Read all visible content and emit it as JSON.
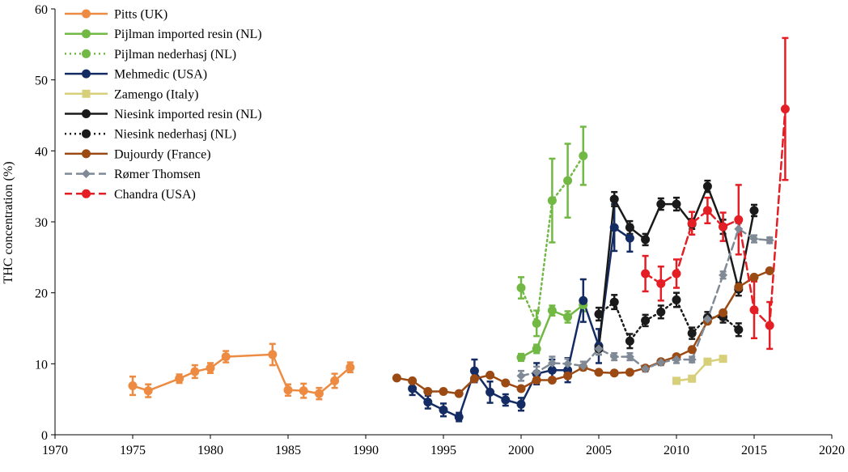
{
  "chart_data": {
    "type": "line",
    "xlabel": "",
    "ylabel": "THC concentration (%)",
    "xlim": [
      1970,
      2020
    ],
    "ylim": [
      0,
      60
    ],
    "xticks": [
      1970,
      1975,
      1980,
      1985,
      1990,
      1995,
      2000,
      2005,
      2010,
      2015,
      2020
    ],
    "yticks": [
      0,
      10,
      20,
      30,
      40,
      50,
      60
    ],
    "grid": false,
    "legend_position": "top-left",
    "series": [
      {
        "name": "Pitts (UK)",
        "color": "#ED8B42",
        "dash": "solid",
        "marker": "circle",
        "x": [
          1975,
          1976,
          1978,
          1979,
          1980,
          1981,
          1984,
          1985,
          1986,
          1987,
          1988,
          1989
        ],
        "y": [
          6.9,
          6.2,
          7.9,
          8.9,
          9.4,
          11.0,
          11.3,
          6.3,
          6.2,
          5.8,
          7.6,
          9.5
        ],
        "err": [
          1.3,
          0.9,
          0.6,
          0.9,
          0.7,
          0.8,
          1.5,
          0.8,
          1.0,
          0.8,
          1.0,
          0.7
        ]
      },
      {
        "name": "Pijlman imported resin (NL)",
        "color": "#72B844",
        "dash": "solid",
        "marker": "circle",
        "x": [
          2000,
          2001,
          2002,
          2003,
          2004
        ],
        "y": [
          10.9,
          12.1,
          17.5,
          16.6,
          18.3
        ],
        "err": [
          0.5,
          0.6,
          0.7,
          0.8,
          0.9
        ]
      },
      {
        "name": "Pijlman nederhasj (NL)",
        "color": "#72B844",
        "dash": "dotted",
        "marker": "circle",
        "x": [
          2000,
          2001,
          2002,
          2003,
          2004
        ],
        "y": [
          20.7,
          15.7,
          33.0,
          35.8,
          39.3
        ],
        "err": [
          1.5,
          1.8,
          5.9,
          5.2,
          4.1
        ]
      },
      {
        "name": "Mehmedic (USA)",
        "color": "#142C63",
        "dash": "solid",
        "marker": "circle",
        "x": [
          1993,
          1994,
          1995,
          1996,
          1997,
          1998,
          1999,
          2000,
          2001,
          2002,
          2003,
          2004,
          2005,
          2006,
          2007
        ],
        "y": [
          6.5,
          4.6,
          3.5,
          2.5,
          9.0,
          6.0,
          4.9,
          4.3,
          8.6,
          9.1,
          9.1,
          18.9,
          12.5,
          29.2,
          27.7
        ],
        "err": [
          0.9,
          0.9,
          0.9,
          0.6,
          1.6,
          1.5,
          0.8,
          0.9,
          1.5,
          1.5,
          1.7,
          3.0,
          2.4,
          3.3,
          1.9
        ]
      },
      {
        "name": "Zamengo (Italy)",
        "color": "#D8CF7A",
        "dash": "solid",
        "marker": "square",
        "x": [
          2010,
          2011,
          2012,
          2013
        ],
        "y": [
          7.6,
          7.9,
          10.3,
          10.7
        ],
        "err": [
          0,
          0,
          0,
          0
        ]
      },
      {
        "name": "Niesink imported resin (NL)",
        "color": "#1A1A1A",
        "dash": "solid",
        "marker": "circle",
        "x": [
          2005,
          2006,
          2007,
          2008,
          2009,
          2010,
          2011,
          2012,
          2013,
          2014,
          2015
        ],
        "y": [
          12.1,
          33.2,
          29.2,
          27.5,
          32.5,
          32.5,
          29.7,
          35.0,
          29.3,
          20.5,
          31.6
        ],
        "err": [
          0.8,
          1.0,
          0.9,
          0.8,
          0.8,
          0.9,
          0.7,
          0.8,
          1.0,
          0.9,
          0.8
        ]
      },
      {
        "name": "Niesink nederhasj (NL)",
        "color": "#1A1A1A",
        "dash": "dotted",
        "marker": "circle",
        "x": [
          2005,
          2006,
          2007,
          2008,
          2009,
          2010,
          2011,
          2012,
          2013,
          2014
        ],
        "y": [
          17.0,
          18.7,
          13.2,
          16.1,
          17.3,
          19.0,
          14.3,
          16.5,
          16.6,
          14.8
        ],
        "err": [
          0.9,
          1.0,
          1.0,
          0.8,
          0.9,
          1.0,
          0.8,
          0.8,
          0.8,
          0.9
        ]
      },
      {
        "name": "Dujourdy (France)",
        "color": "#9C4A13",
        "dash": "solid",
        "marker": "circle",
        "x": [
          1992,
          1993,
          1994,
          1995,
          1996,
          1997,
          1998,
          1999,
          2000,
          2001,
          2002,
          2003,
          2004,
          2005,
          2006,
          2007,
          2008,
          2009,
          2010,
          2011,
          2012,
          2013,
          2014,
          2015,
          2016
        ],
        "y": [
          8.0,
          7.6,
          6.1,
          6.1,
          5.8,
          7.9,
          8.4,
          7.3,
          6.5,
          7.7,
          7.7,
          8.3,
          9.5,
          8.8,
          8.7,
          8.8,
          9.4,
          10.3,
          11.0,
          12.0,
          16.0,
          17.2,
          20.8,
          22.2,
          23.1
        ],
        "err": [
          0,
          0,
          0,
          0,
          0,
          0,
          0,
          0,
          0,
          0,
          0,
          0,
          0,
          0,
          0,
          0,
          0,
          0,
          0,
          0,
          0,
          0,
          0,
          0,
          0
        ]
      },
      {
        "name": "Rømer Thomsen",
        "color": "#7F8A96",
        "dash": "dashed",
        "marker": "diamond",
        "x": [
          2000,
          2001,
          2002,
          2003,
          2004,
          2005,
          2006,
          2007,
          2008,
          2009,
          2010,
          2011,
          2012,
          2013,
          2014,
          2015,
          2016
        ],
        "y": [
          8.3,
          8.8,
          10.1,
          10.0,
          9.7,
          12.1,
          11.0,
          11.0,
          9.3,
          10.2,
          10.6,
          10.6,
          16.3,
          22.5,
          29.0,
          27.6,
          27.4
        ],
        "err": [
          0.7,
          0.8,
          0.9,
          0.7,
          0.6,
          0.8,
          0.5,
          0.5,
          0.4,
          0.4,
          0.5,
          0.4,
          0.6,
          0.5,
          0.8,
          0.5,
          0.4
        ]
      },
      {
        "name": "Chandra (USA)",
        "color": "#E41E25",
        "dash": "dashed",
        "marker": "circle",
        "x": [
          2008,
          2009,
          2010,
          2011,
          2012,
          2013,
          2014,
          2015,
          2016,
          2017
        ],
        "y": [
          22.7,
          21.3,
          22.7,
          29.8,
          31.6,
          29.3,
          30.3,
          17.6,
          15.4,
          45.9
        ],
        "err": [
          2.5,
          2.4,
          2.0,
          1.6,
          1.8,
          2.0,
          4.9,
          4.0,
          3.3,
          10.0
        ]
      }
    ]
  }
}
